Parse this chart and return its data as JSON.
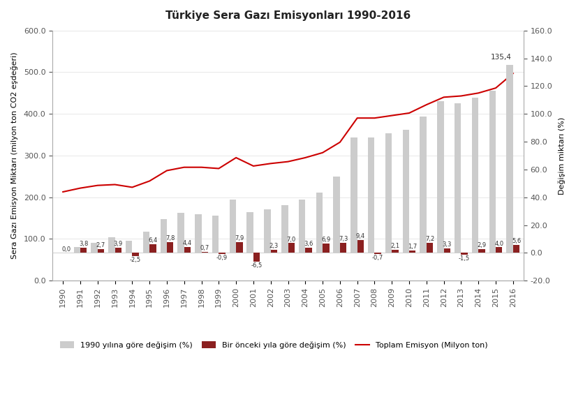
{
  "title": "Türkiye Sera Gazı Emisyonları 1990-2016",
  "years": [
    1990,
    1991,
    1992,
    1993,
    1994,
    1995,
    1996,
    1997,
    1998,
    1999,
    2000,
    2001,
    2002,
    2003,
    2004,
    2005,
    2006,
    2007,
    2008,
    2009,
    2010,
    2011,
    2012,
    2013,
    2014,
    2015,
    2016
  ],
  "total_emission": [
    213.0,
    222.0,
    228.5,
    230.5,
    224.0,
    239.0,
    264.0,
    272.0,
    272.0,
    269.0,
    295.0,
    275.0,
    281.0,
    285.5,
    295.0,
    307.0,
    332.0,
    390.0,
    390.0,
    396.0,
    402.0,
    422.0,
    440.0,
    443.0,
    450.0,
    462.0,
    497.0
  ],
  "gray_bar_pct": [
    0.0,
    4.2,
    7.0,
    11.2,
    8.5,
    15.5,
    24.1,
    28.7,
    28.0,
    27.0,
    38.5,
    29.5,
    31.5,
    34.5,
    38.5,
    43.5,
    55.0,
    83.0,
    83.0,
    86.0,
    88.5,
    98.0,
    109.0,
    107.5,
    111.5,
    116.5,
    135.4
  ],
  "red_bar_pct": [
    0.0,
    3.8,
    2.7,
    3.9,
    -2.5,
    6.4,
    7.8,
    4.4,
    0.7,
    -0.9,
    7.9,
    -6.5,
    2.3,
    7.0,
    3.6,
    6.9,
    7.3,
    9.4,
    -0.7,
    2.1,
    1.7,
    7.2,
    3.3,
    -1.5,
    2.9,
    4.0,
    5.6
  ],
  "red_bar_labels": [
    "0,0",
    "3,8",
    "2,7",
    "3,9",
    "-2,5",
    "6,4",
    "7,8",
    "4,4",
    "0,7",
    "-0,9",
    "7,9",
    "-6,5",
    "2,3",
    "7,0",
    "3,6",
    "6,9",
    "7,3",
    "9,4",
    "-0,7",
    "2,1",
    "1,7",
    "7,2",
    "3,3",
    "-1,5",
    "2,9",
    "4,0",
    "5,6"
  ],
  "annotation_label": "135,4",
  "ylabel_left": "Sera Gazı Emisyon Miktarı (milyon ton CO2 eşdeğeri)",
  "ylabel_right": "Değişim miktarı (%)",
  "ylim_left": [
    0.0,
    600.0
  ],
  "ylim_right": [
    -20.0,
    160.0
  ],
  "yticks_left": [
    0.0,
    100.0,
    200.0,
    300.0,
    400.0,
    500.0,
    600.0
  ],
  "yticks_right": [
    -20.0,
    0.0,
    20.0,
    40.0,
    60.0,
    80.0,
    100.0,
    120.0,
    140.0,
    160.0
  ],
  "bar_color_gray": "#cccccc",
  "bar_color_red": "#8b2020",
  "line_color": "#cc0000",
  "legend_gray": "1990 yılına göre değişim (%)",
  "legend_red": "Bir önceki yıla göre değişim (%)",
  "legend_line": "Toplam Emisyon (Milyon ton)",
  "background_color": "#ffffff",
  "grid_color": "#dddddd",
  "tick_label_color": "#555555",
  "label_fontsize": 8,
  "bar_width": 0.38
}
